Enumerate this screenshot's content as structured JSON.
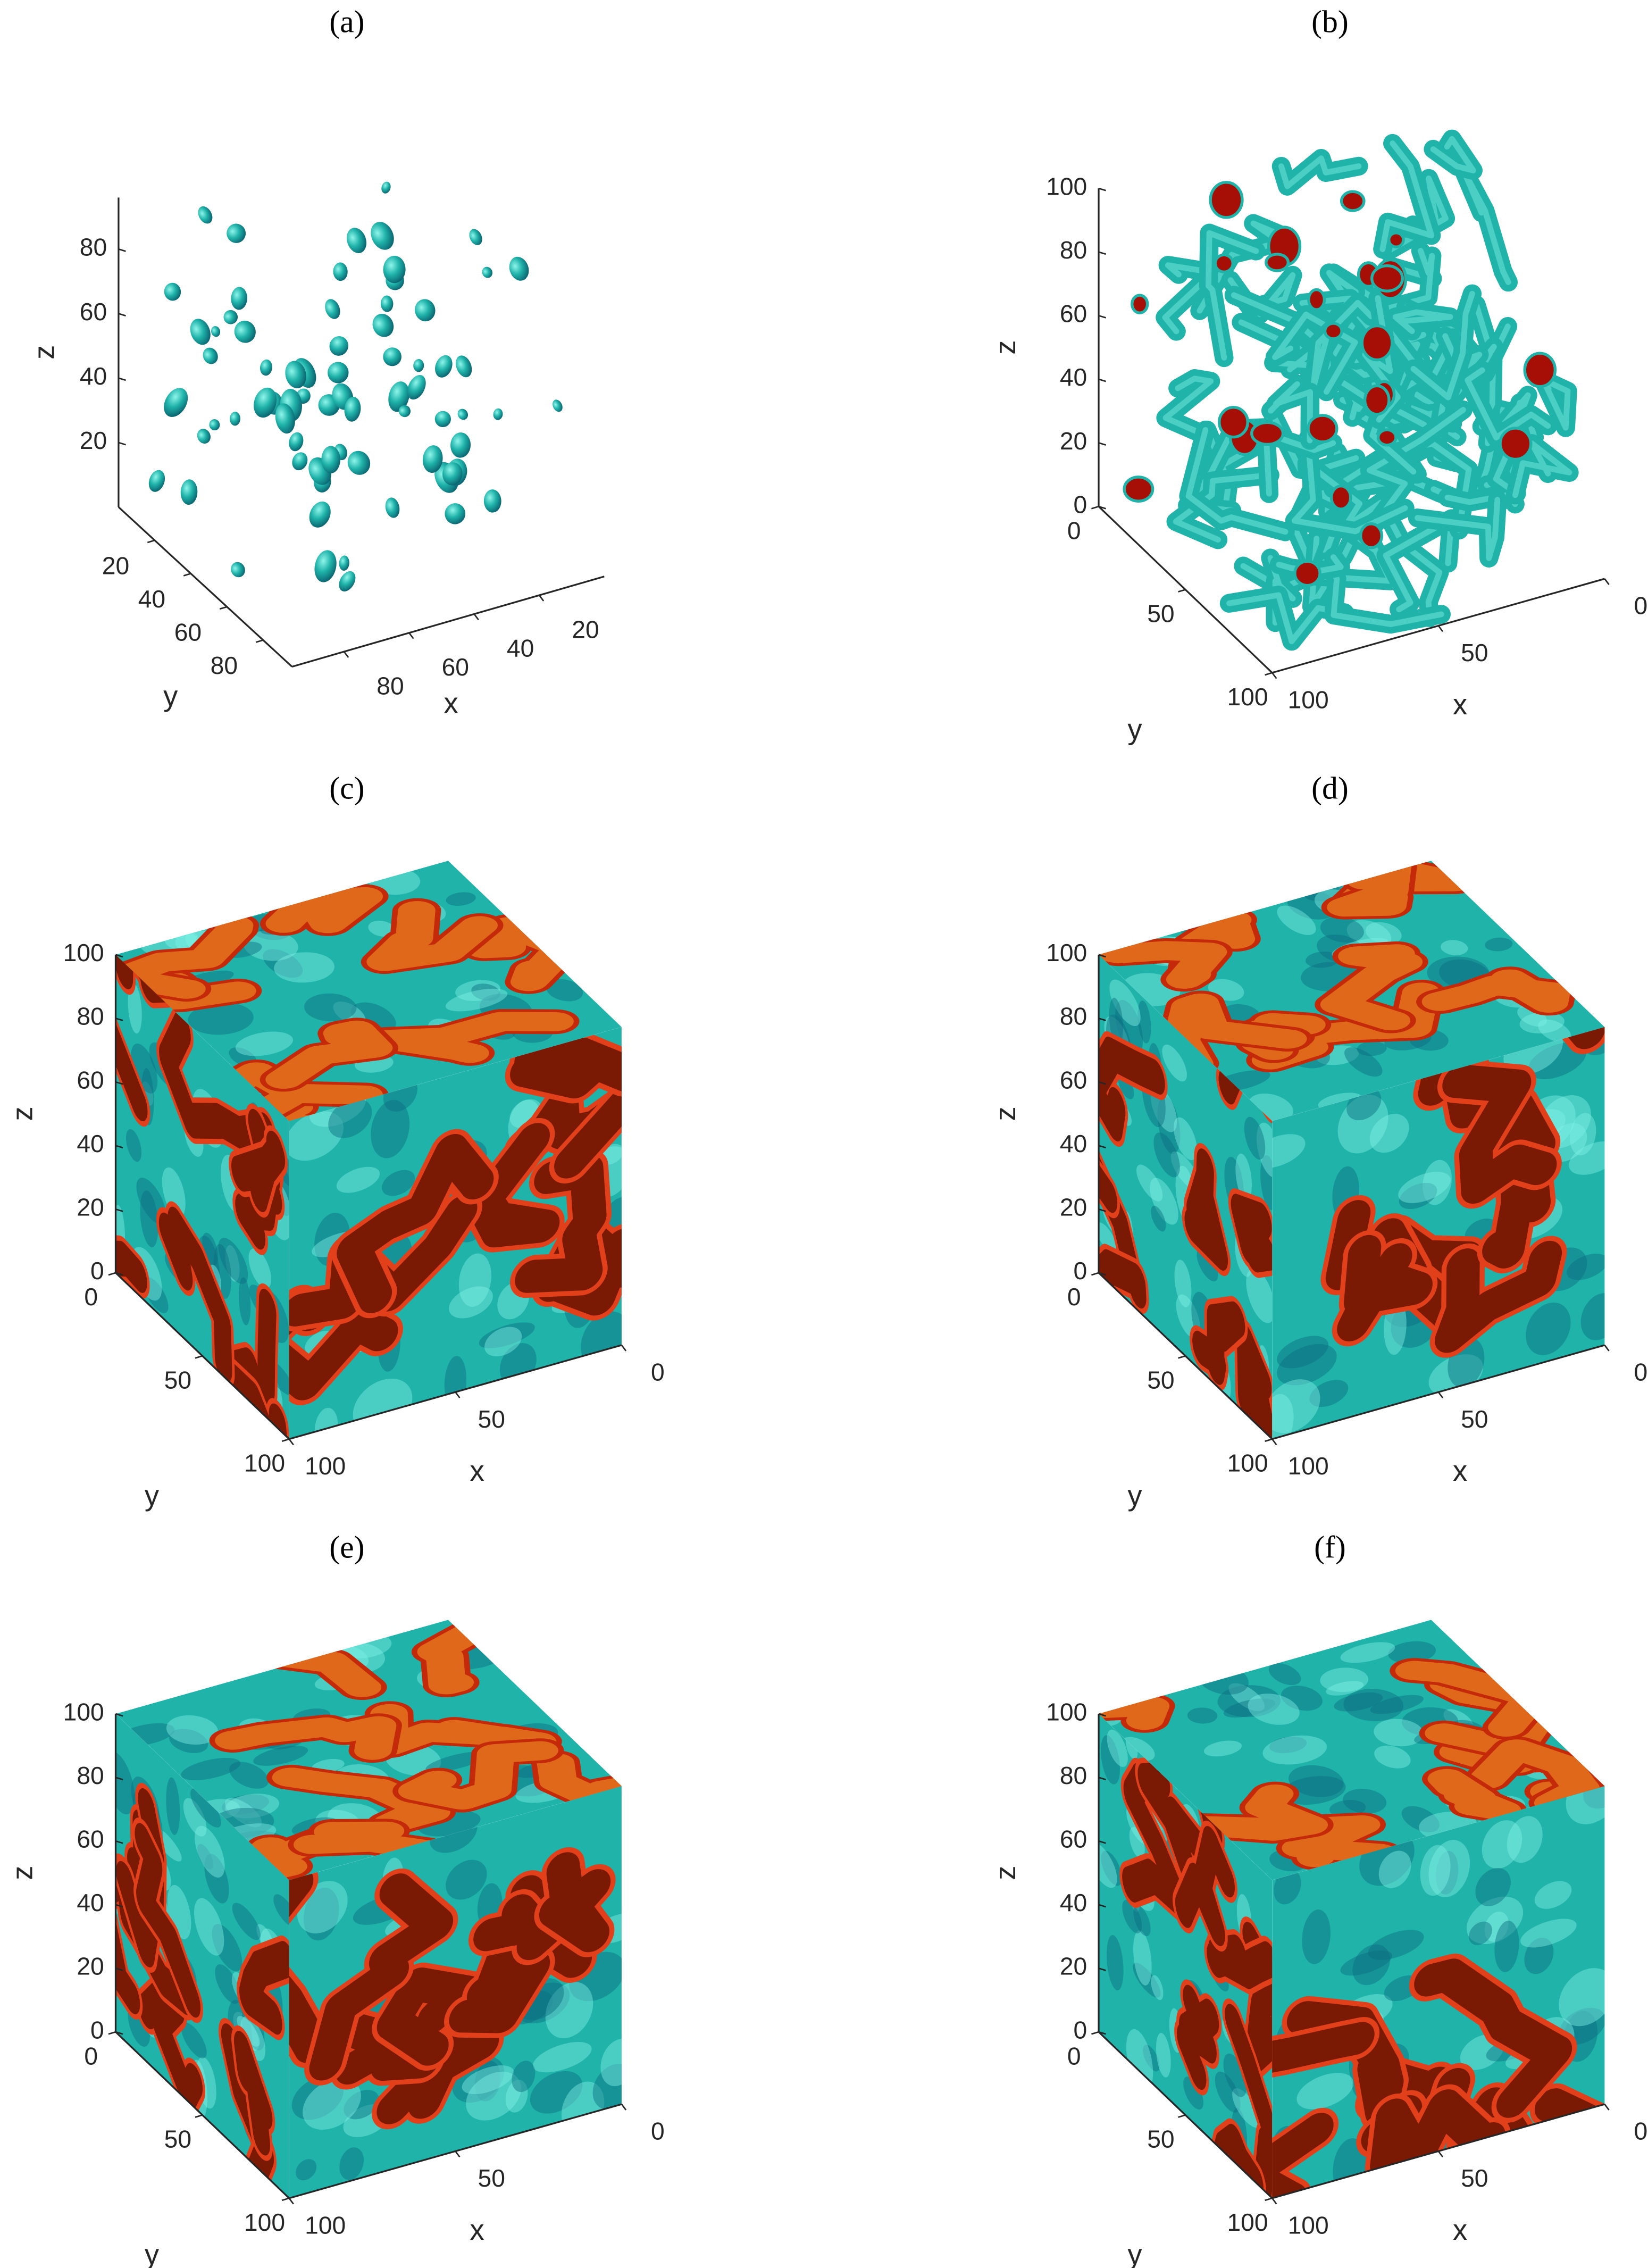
{
  "chart_data": [
    {
      "type": "isosurface",
      "title": "(a)",
      "xlabel": "x",
      "ylabel": "y",
      "zlabel": "z",
      "color": "#1fb3aa",
      "cap_color": "#a50f05",
      "xlim": [
        0,
        96
      ],
      "ylim": [
        0,
        96
      ],
      "zlim": [
        0,
        96
      ],
      "xticks": [
        20,
        40,
        60,
        80
      ],
      "yticks": [
        20,
        40,
        60,
        80
      ],
      "zticks": [
        20,
        40,
        60,
        80
      ]
    },
    {
      "type": "isosurface",
      "title": "(b)",
      "xlabel": "x",
      "ylabel": "y",
      "zlabel": "z",
      "color": "#1fb3aa",
      "cap_color": "#a50f05",
      "xlim": [
        0,
        100
      ],
      "ylim": [
        0,
        100
      ],
      "zlim": [
        0,
        100
      ],
      "xticks": [
        0,
        50,
        100
      ],
      "yticks": [
        0,
        50,
        100
      ],
      "zticks": [
        0,
        20,
        40,
        60,
        80,
        100
      ]
    },
    {
      "type": "isosurface",
      "title": "(c)",
      "xlabel": "x",
      "ylabel": "y",
      "zlabel": "z",
      "color": "#1fb3aa",
      "cap_color": "#7a1a05",
      "xlim": [
        0,
        100
      ],
      "ylim": [
        0,
        100
      ],
      "zlim": [
        0,
        100
      ],
      "xticks": [
        0,
        50,
        100
      ],
      "yticks": [
        0,
        50,
        100
      ],
      "zticks": [
        0,
        20,
        40,
        60,
        80,
        100
      ]
    },
    {
      "type": "isosurface",
      "title": "(d)",
      "xlabel": "x",
      "ylabel": "y",
      "zlabel": "z",
      "color": "#1fb3aa",
      "cap_color": "#7a1a05",
      "xlim": [
        0,
        100
      ],
      "ylim": [
        0,
        100
      ],
      "zlim": [
        0,
        100
      ],
      "xticks": [
        0,
        50,
        100
      ],
      "yticks": [
        0,
        50,
        100
      ],
      "zticks": [
        0,
        20,
        40,
        60,
        80,
        100
      ]
    },
    {
      "type": "isosurface",
      "title": "(e)",
      "xlabel": "x",
      "ylabel": "y",
      "zlabel": "z",
      "color": "#1fb3aa",
      "cap_color": "#7a1a05",
      "xlim": [
        0,
        100
      ],
      "ylim": [
        0,
        100
      ],
      "zlim": [
        0,
        100
      ],
      "xticks": [
        0,
        50,
        100
      ],
      "yticks": [
        0,
        50,
        100
      ],
      "zticks": [
        0,
        20,
        40,
        60,
        80,
        100
      ]
    },
    {
      "type": "isosurface",
      "title": "(f)",
      "xlabel": "x",
      "ylabel": "y",
      "zlabel": "z",
      "color": "#1fb3aa",
      "cap_color": "#7a1a05",
      "xlim": [
        0,
        100
      ],
      "ylim": [
        0,
        100
      ],
      "zlim": [
        0,
        100
      ],
      "xticks": [
        0,
        50,
        100
      ],
      "yticks": [
        0,
        50,
        100
      ],
      "zticks": [
        0,
        20,
        40,
        60,
        80,
        100
      ]
    }
  ]
}
